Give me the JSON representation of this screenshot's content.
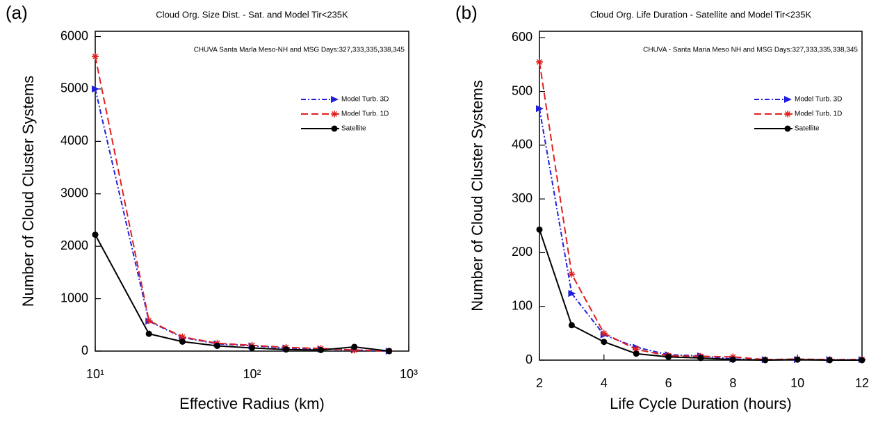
{
  "chart_data": [
    {
      "type": "line",
      "panel_label": "(a)",
      "title": "Cloud Org. Size Dist. - Sat. and Model Tir<235K",
      "annotation": "CHUVA Santa Marla  Meso-NH and MSG Days:327,333,335,338,345",
      "xlabel": "Effective Radius (km)",
      "ylabel": "Number of Cloud Cluster Systems",
      "x_log": true,
      "xlim": [
        10,
        1000
      ],
      "xticks": [
        {
          "value": 10,
          "label": "10¹"
        },
        {
          "value": 100,
          "label": "10²"
        },
        {
          "value": 1000,
          "label": "10³"
        }
      ],
      "ylim": [
        0,
        6100
      ],
      "yticks": [
        0,
        1000,
        2000,
        3000,
        4000,
        5000,
        6000
      ],
      "legend": "upper right",
      "x": [
        10,
        22,
        36,
        60,
        100,
        165,
        275,
        450,
        750
      ],
      "series": [
        {
          "name": "Model Turb. 3D",
          "color": "#1f1fe0",
          "marker": "triangle",
          "dash": "dashdot",
          "values": [
            5000,
            570,
            260,
            140,
            100,
            60,
            40,
            20,
            0
          ]
        },
        {
          "name": "Model Turb. 1D",
          "color": "#e01f1f",
          "marker": "asterisk",
          "dash": "dashed",
          "values": [
            5620,
            580,
            270,
            150,
            110,
            70,
            50,
            20,
            0
          ]
        },
        {
          "name": "Satellite",
          "color": "#000000",
          "marker": "circle",
          "dash": "solid",
          "values": [
            2220,
            330,
            180,
            100,
            60,
            30,
            20,
            80,
            0
          ]
        }
      ]
    },
    {
      "type": "line",
      "panel_label": "(b)",
      "title": "Cloud Org. Life Duration - Satellite and Model Tir<235K",
      "annotation": "CHUVA - Santa Maria Meso NH and MSG Days:327,333,335,338,345",
      "xlabel": "Life Cycle Duration (hours)",
      "ylabel": "Number of Cloud Cluster Systems",
      "x_log": false,
      "xlim": [
        2,
        12
      ],
      "xticks": [
        2,
        4,
        6,
        8,
        10,
        12
      ],
      "ylim": [
        0,
        612
      ],
      "yticks": [
        0,
        100,
        200,
        300,
        400,
        500,
        600
      ],
      "legend": "upper right",
      "x": [
        2,
        3,
        4,
        5,
        6,
        7,
        8,
        9,
        10,
        11,
        12
      ],
      "series": [
        {
          "name": "Model Turb. 3D",
          "color": "#1f1fe0",
          "marker": "triangle",
          "dash": "dashdot",
          "values": [
            468,
            124,
            47,
            24,
            10,
            8,
            2,
            1,
            1,
            1,
            1
          ]
        },
        {
          "name": "Model Turb. 1D",
          "color": "#e01f1f",
          "marker": "asterisk",
          "dash": "dashed",
          "values": [
            555,
            160,
            50,
            20,
            8,
            7,
            6,
            1,
            2,
            1,
            1
          ]
        },
        {
          "name": "Satellite",
          "color": "#000000",
          "marker": "circle",
          "dash": "solid",
          "values": [
            243,
            65,
            34,
            12,
            6,
            4,
            1,
            0,
            1,
            0,
            0
          ]
        }
      ]
    }
  ]
}
